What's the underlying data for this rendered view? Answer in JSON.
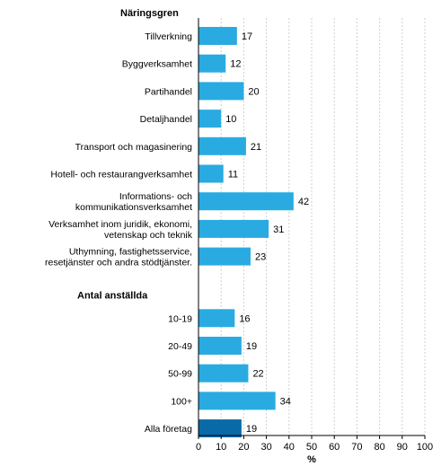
{
  "chart_data": {
    "type": "bar",
    "orientation": "horizontal",
    "xlabel": "%",
    "xlim": [
      0,
      100
    ],
    "xticks": [
      0,
      10,
      20,
      30,
      40,
      50,
      60,
      70,
      80,
      90,
      100
    ],
    "grid": "vertical dashed",
    "colors": {
      "default": "#29abe2",
      "highlight": "#0a6aa8"
    },
    "groups": [
      {
        "heading": "Näringsgren",
        "categories": [
          [
            "Tillverkning"
          ],
          [
            "Byggverksamhet"
          ],
          [
            "Partihandel"
          ],
          [
            "Detaljhandel"
          ],
          [
            "Transport och magasinering"
          ],
          [
            "Hotell- och restaurangverksamhet"
          ],
          [
            "Informations- och",
            "kommunikationsverksamhet"
          ],
          [
            "Verksamhet inom juridik, ekonomi,",
            "vetenskap och teknik"
          ],
          [
            "Uthymning, fastighetsservice,",
            "resetjänster och andra stödtjänster."
          ]
        ],
        "values": [
          17,
          12,
          20,
          10,
          21,
          11,
          42,
          31,
          23
        ]
      },
      {
        "heading": "Antal anställda",
        "categories": [
          [
            "10-19"
          ],
          [
            "20-49"
          ],
          [
            "50-99"
          ],
          [
            "100+"
          ]
        ],
        "values": [
          16,
          19,
          22,
          34
        ]
      },
      {
        "heading": "",
        "categories": [
          [
            "Alla företag"
          ]
        ],
        "values": [
          19
        ],
        "highlight": true
      }
    ]
  }
}
